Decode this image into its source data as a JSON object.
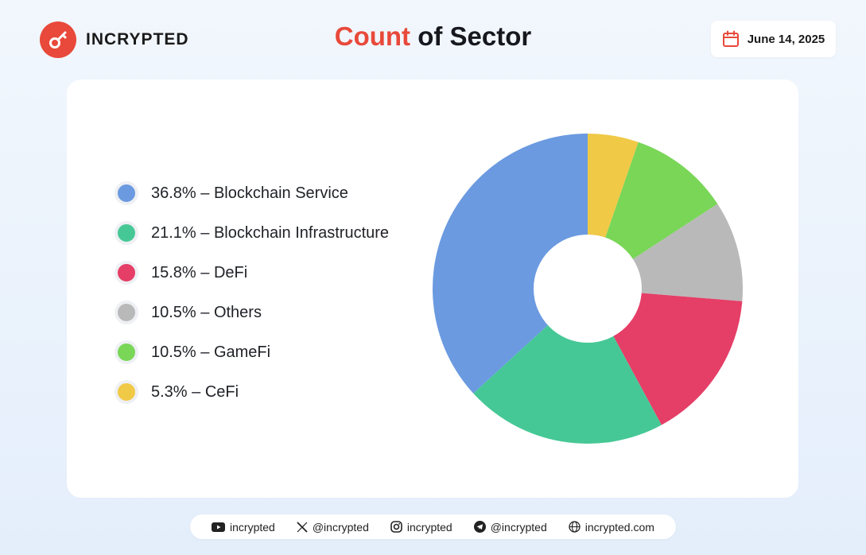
{
  "brand": {
    "name": "INCRYPTED",
    "logo_icon": "key-icon",
    "accent_color": "#e8493a"
  },
  "title": {
    "accent": "Count",
    "rest": " of Sector"
  },
  "date": {
    "text": "June 14, 2025",
    "icon": "calendar-icon"
  },
  "chart_data": {
    "type": "pie",
    "donut": true,
    "title": "Count of Sector",
    "legend_position": "left",
    "slices": [
      {
        "label": "5.3% – CeFi",
        "name": "CeFi",
        "value": 5.3,
        "color": "#f0c947"
      },
      {
        "label": "10.5% – GameFi",
        "name": "GameFi",
        "value": 10.5,
        "color": "#79d657"
      },
      {
        "label": "10.5% – Others",
        "name": "Others",
        "value": 10.5,
        "color": "#b9b9b9"
      },
      {
        "label": "15.8% – DeFi",
        "name": "DeFi",
        "value": 15.8,
        "color": "#e53e67"
      },
      {
        "label": "21.1% – Blockchain Infrastructure",
        "name": "Blockchain Infrastructure",
        "value": 21.1,
        "color": "#46c896"
      },
      {
        "label": "36.8% – Blockchain Service",
        "name": "Blockchain Service",
        "value": 36.8,
        "color": "#6b9ae0"
      }
    ],
    "legend_order": [
      5,
      4,
      3,
      2,
      1,
      0
    ]
  },
  "footer": {
    "items": [
      {
        "icon": "youtube-icon",
        "text": "incrypted"
      },
      {
        "icon": "x-icon",
        "text": "@incrypted"
      },
      {
        "icon": "instagram-icon",
        "text": "incrypted"
      },
      {
        "icon": "telegram-icon",
        "text": "@incrypted"
      },
      {
        "icon": "globe-icon",
        "text": "incrypted.com"
      }
    ]
  }
}
